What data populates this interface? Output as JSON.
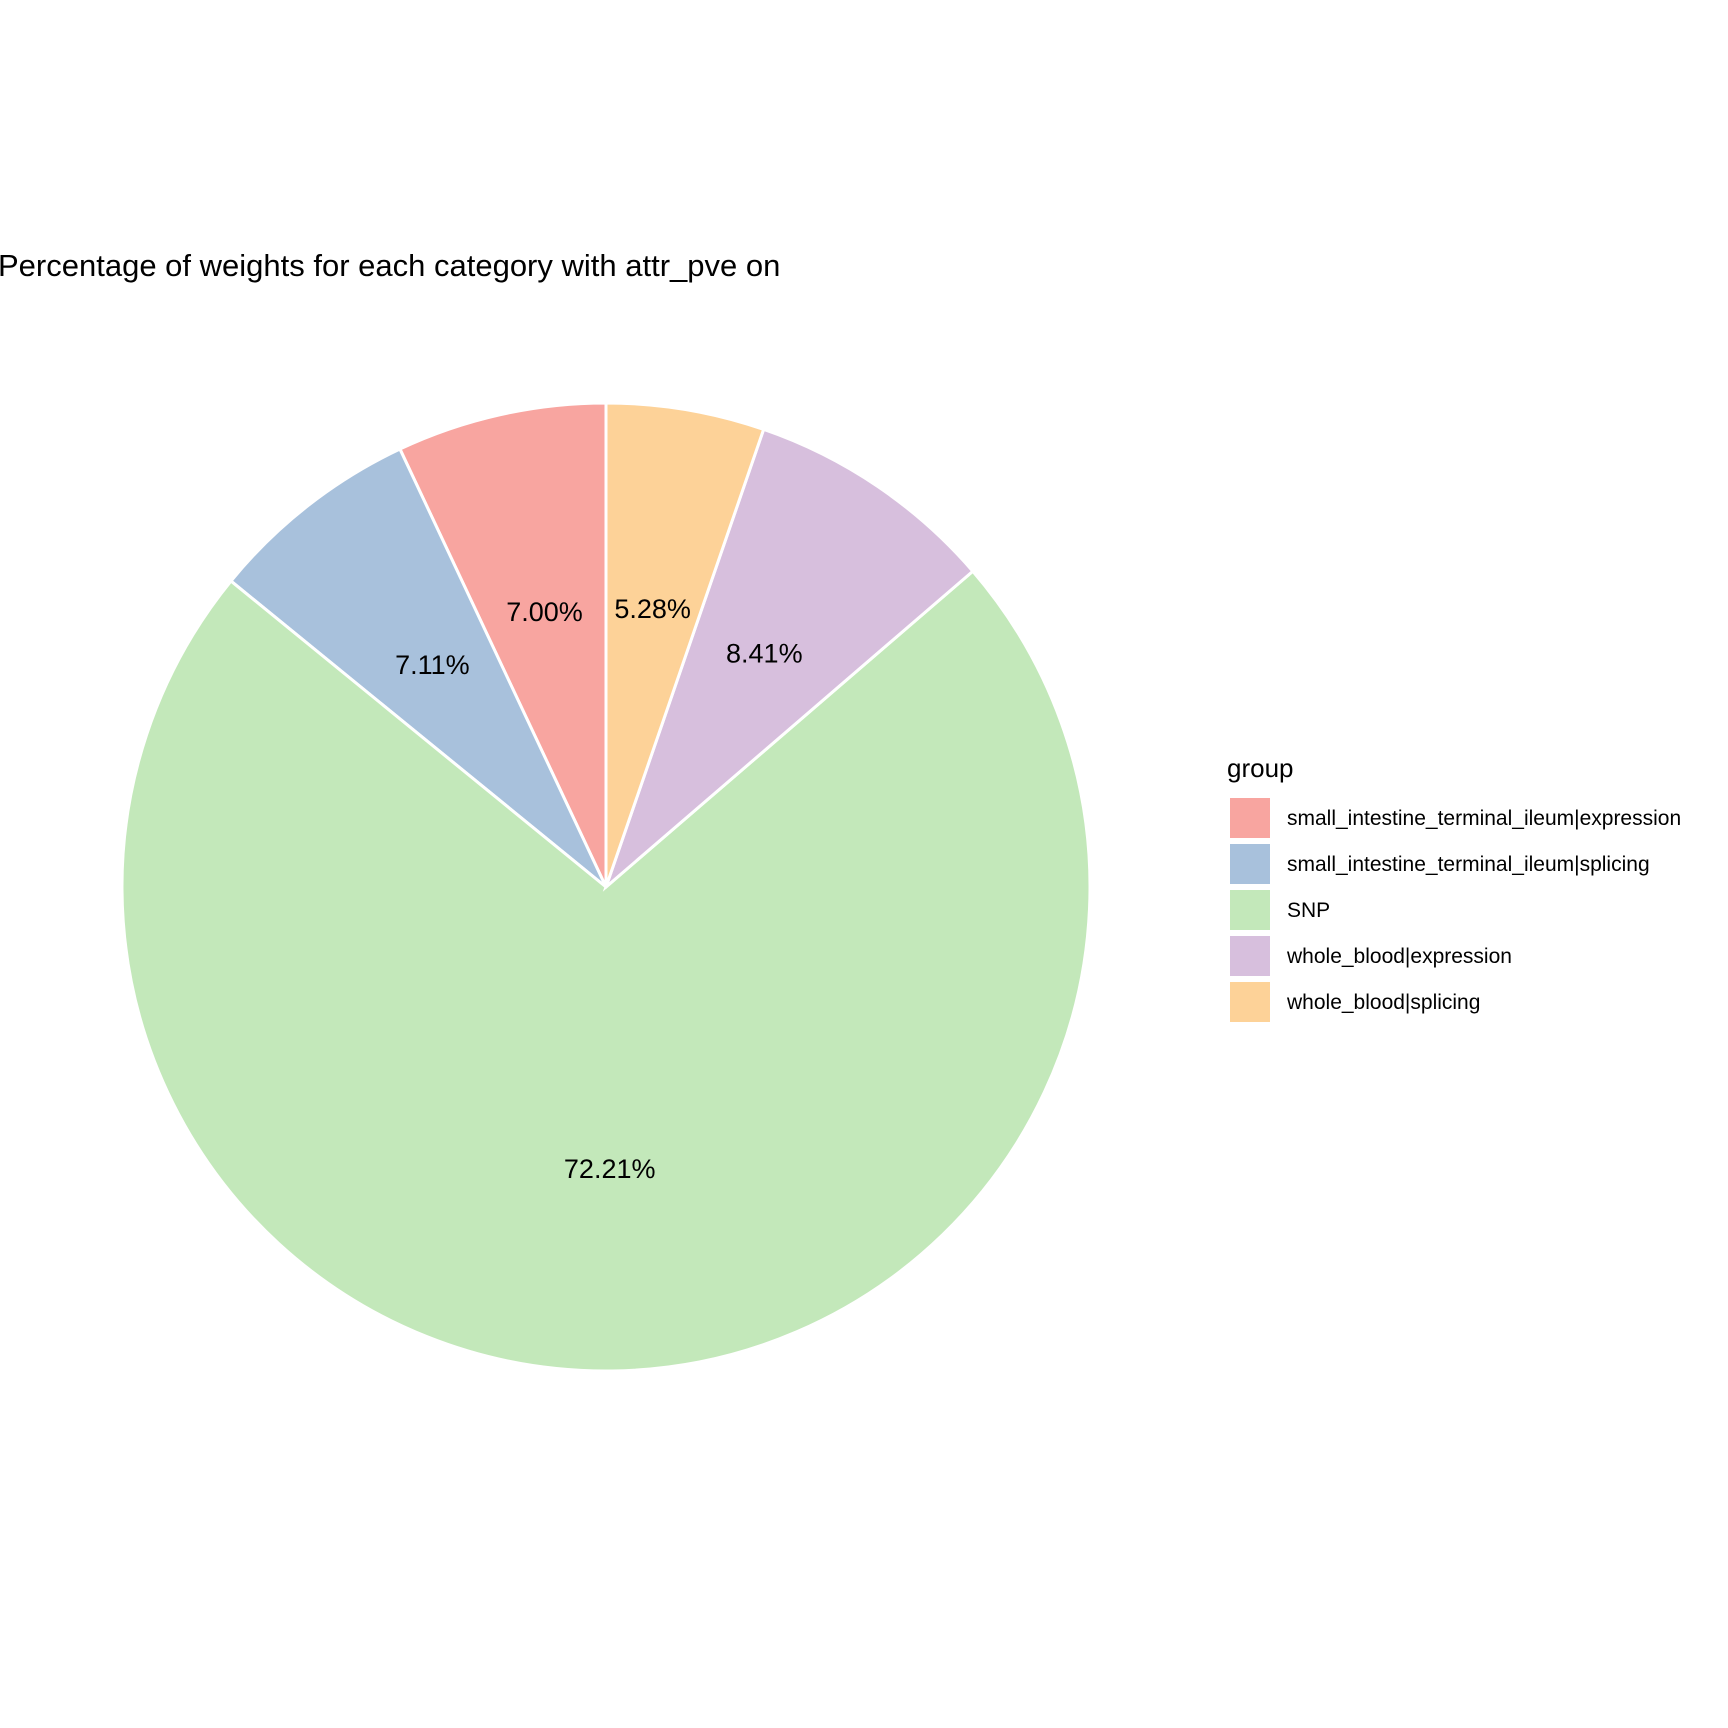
{
  "chart_data": {
    "type": "pie",
    "title": "Percentage of weights for each category with attr_pve on",
    "legend": {
      "title": "group",
      "position": "right"
    },
    "slices": [
      {
        "label": "small_intestine_terminal_ileum|expression",
        "value": 7.0,
        "display": "7.00%",
        "color": "#F8A5A0"
      },
      {
        "label": "small_intestine_terminal_ileum|splicing",
        "value": 7.11,
        "display": "7.11%",
        "color": "#A8C1DC"
      },
      {
        "label": "SNP",
        "value": 72.21,
        "display": "72.21%",
        "color": "#C3E8BA"
      },
      {
        "label": "whole_blood|expression",
        "value": 8.41,
        "display": "8.41%",
        "color": "#D7BFDD"
      },
      {
        "label": "whole_blood|splicing",
        "value": 5.28,
        "display": "5.28%",
        "color": "#FDD298"
      }
    ]
  }
}
